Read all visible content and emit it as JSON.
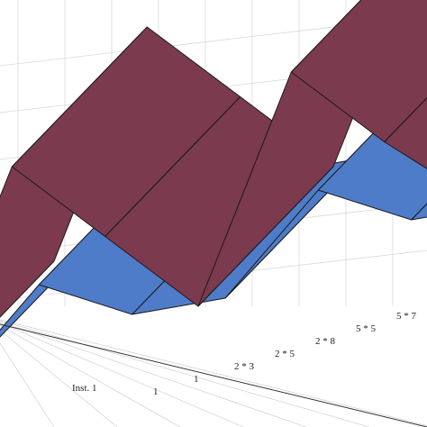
{
  "chart_data": {
    "type": "surface3d",
    "title": "",
    "grid": true,
    "axes": {
      "x": {
        "label": "Inst. 1",
        "ticks": [
          "1",
          "1",
          "2 * 3",
          "2 * 5",
          "2 * 8",
          "5 * 5",
          "5 * 7"
        ]
      },
      "y": {
        "label": "",
        "ticks": []
      },
      "z": {
        "label": "",
        "ticks": []
      }
    },
    "series": [
      {
        "color": "#7b3a4e",
        "profile": [
          0.1,
          1.0,
          0.55,
          0.1,
          1.0,
          0.55,
          0.15
        ]
      },
      {
        "color": "#4f7cc9",
        "profile": [
          0.2,
          0.7,
          0.3,
          0.2,
          0.7,
          0.3,
          0.2
        ]
      }
    ],
    "colors": {
      "upper_surface": "#7b3a4e",
      "lower_surface": "#4f7cc9",
      "edge": "#1a1a1a",
      "grid": "#d9d9d9"
    }
  }
}
